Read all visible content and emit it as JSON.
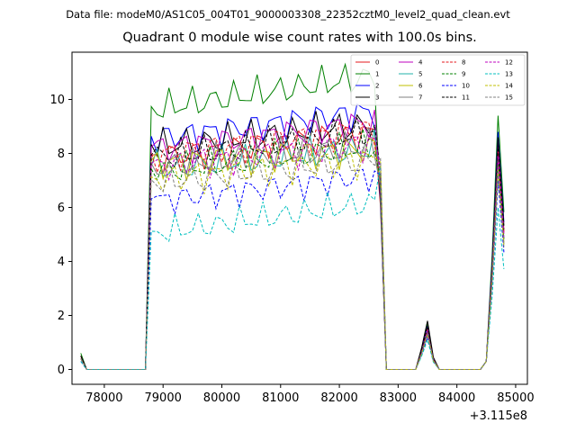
{
  "header": {
    "suptitle": "Data file: modeM0/AS1C05_004T01_9000003308_22352cztM0_level2_quad_clean.evt",
    "title": "Quadrant 0 module wise count rates with 100.0s bins."
  },
  "chart_data": {
    "type": "line",
    "title": "Quadrant 0 module wise count rates with 100.0s bins.",
    "xlabel": "",
    "ylabel": "",
    "x_offset_label": "+3.115e8",
    "xlim": [
      77450,
      85200
    ],
    "ylim": [
      -0.55,
      11.75
    ],
    "xticks": [
      78000,
      79000,
      80000,
      81000,
      82000,
      83000,
      84000,
      85000
    ],
    "xtick_labels": [
      "78000",
      "79000",
      "80000",
      "81000",
      "82000",
      "83000",
      "84000",
      "85000"
    ],
    "yticks": [
      0,
      2,
      4,
      6,
      8,
      10
    ],
    "ytick_labels": [
      "0",
      "2",
      "4",
      "6",
      "8",
      "10"
    ],
    "grid": false,
    "legend_position": "top-right",
    "segments": [
      {
        "x_start": 77600,
        "x_end": 77700
      },
      {
        "x_start": 77700,
        "x_end": 78700
      },
      {
        "x_start": 78700,
        "x_end": 82700
      },
      {
        "x_start": 82700,
        "x_end": 83700
      },
      {
        "x_start": 83700,
        "x_end": 84800
      }
    ],
    "series": [
      {
        "name": "0",
        "color": "#e41a1c",
        "dash": "solid",
        "plateau": 7.8,
        "amp": 0.45,
        "trend": 1.0,
        "end_peak": 8.3,
        "spike": 1.5,
        "start": 0.5
      },
      {
        "name": "1",
        "color": "#008000",
        "dash": "solid",
        "plateau": 9.6,
        "amp": 0.45,
        "trend": 1.3,
        "end_peak": 9.4,
        "spike": 1.7,
        "start": 0.6
      },
      {
        "name": "2",
        "color": "#0000ff",
        "dash": "solid",
        "plateau": 8.5,
        "amp": 0.45,
        "trend": 1.1,
        "end_peak": 8.8,
        "spike": 1.6,
        "start": 0.5
      },
      {
        "name": "3",
        "color": "#000000",
        "dash": "solid",
        "plateau": 8.2,
        "amp": 0.45,
        "trend": 0.9,
        "end_peak": 8.6,
        "spike": 1.8,
        "start": 0.5
      },
      {
        "name": "4",
        "color": "#bf00bf",
        "dash": "solid",
        "plateau": 8.1,
        "amp": 0.45,
        "trend": 1.1,
        "end_peak": 8.1,
        "spike": 1.5,
        "start": 0.4
      },
      {
        "name": "5",
        "color": "#20b2aa",
        "dash": "solid",
        "plateau": 7.4,
        "amp": 0.45,
        "trend": 0.8,
        "end_peak": 7.8,
        "spike": 1.4,
        "start": 0.4
      },
      {
        "name": "6",
        "color": "#bfbf00",
        "dash": "solid",
        "plateau": 7.6,
        "amp": 0.45,
        "trend": 0.6,
        "end_peak": 7.6,
        "spike": 1.4,
        "start": 0.4
      },
      {
        "name": "7",
        "color": "#808080",
        "dash": "solid",
        "plateau": 7.5,
        "amp": 0.45,
        "trend": 0.8,
        "end_peak": 7.5,
        "spike": 1.3,
        "start": 0.4
      },
      {
        "name": "8",
        "color": "#e41a1c",
        "dash": "dashed",
        "plateau": 7.9,
        "amp": 0.45,
        "trend": 1.0,
        "end_peak": 8.2,
        "spike": 1.5,
        "start": 0.5
      },
      {
        "name": "9",
        "color": "#008000",
        "dash": "dashed",
        "plateau": 7.3,
        "amp": 0.45,
        "trend": 1.0,
        "end_peak": 7.8,
        "spike": 1.4,
        "start": 0.4
      },
      {
        "name": "10",
        "color": "#0000ff",
        "dash": "dashed",
        "plateau": 6.2,
        "amp": 0.4,
        "trend": 1.0,
        "end_peak": 7.0,
        "spike": 1.2,
        "start": 0.3
      },
      {
        "name": "11",
        "color": "#000000",
        "dash": "dashed",
        "plateau": 7.8,
        "amp": 0.45,
        "trend": 1.0,
        "end_peak": 8.4,
        "spike": 1.6,
        "start": 0.5
      },
      {
        "name": "12",
        "color": "#bf00bf",
        "dash": "dashed",
        "plateau": 7.5,
        "amp": 0.45,
        "trend": 0.9,
        "end_peak": 7.9,
        "spike": 1.4,
        "start": 0.4
      },
      {
        "name": "13",
        "color": "#00bfbf",
        "dash": "dashed",
        "plateau": 5.0,
        "amp": 0.4,
        "trend": 1.2,
        "end_peak": 6.0,
        "spike": 1.1,
        "start": 0.3
      },
      {
        "name": "14",
        "color": "#bfbf00",
        "dash": "dashed",
        "plateau": 7.0,
        "amp": 0.45,
        "trend": 0.8,
        "end_peak": 7.4,
        "spike": 1.3,
        "start": 0.4
      },
      {
        "name": "15",
        "color": "#808080",
        "dash": "dashed",
        "plateau": 6.9,
        "amp": 0.45,
        "trend": 0.9,
        "end_peak": 7.3,
        "spike": 1.3,
        "start": 0.4
      }
    ]
  }
}
